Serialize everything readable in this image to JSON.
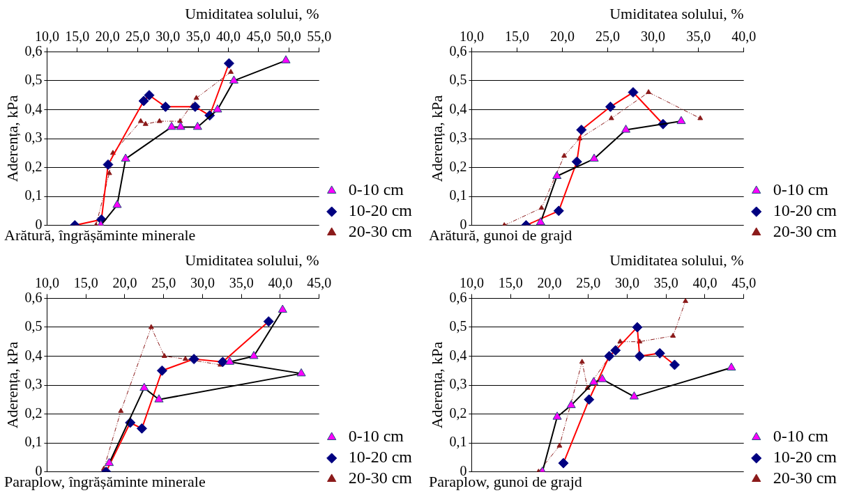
{
  "chart_data": [
    {
      "type": "line",
      "title": "Arătură, îngrășăminte minerale",
      "xlabel": "Umiditatea solului, %",
      "ylabel": "Aderența, kPa",
      "xlim": [
        10,
        55
      ],
      "xticks": [
        {
          "value": 10,
          "label": "10,0"
        },
        {
          "value": 15,
          "label": "15,0"
        },
        {
          "value": 20,
          "label": "20,0"
        },
        {
          "value": 25,
          "label": "25,0"
        },
        {
          "value": 30,
          "label": "30,0"
        },
        {
          "value": 35,
          "label": "35,0"
        },
        {
          "value": 40,
          "label": "40,0"
        },
        {
          "value": 45,
          "label": "45,0"
        },
        {
          "value": 50,
          "label": "50,0"
        },
        {
          "value": 55,
          "label": "55,0"
        }
      ],
      "ylim": [
        0,
        0.6
      ],
      "yticks": [
        {
          "value": 0,
          "label": "0"
        },
        {
          "value": 0.1,
          "label": "0,1"
        },
        {
          "value": 0.2,
          "label": "0,2"
        },
        {
          "value": 0.3,
          "label": "0,3"
        },
        {
          "value": 0.4,
          "label": "0,4"
        },
        {
          "value": 0.5,
          "label": "0,5"
        },
        {
          "value": 0.6,
          "label": "0,6"
        }
      ],
      "grid": "y",
      "legend": "bottom right",
      "series": [
        {
          "name": "0-10 cm",
          "color": "#000000",
          "marker": "triangle",
          "line_style": "solid",
          "x": [
            18.9,
            21.6,
            23.0,
            30.6,
            32.1,
            34.9,
            38.2,
            40.9,
            49.5
          ],
          "values": [
            0,
            0.07,
            0.23,
            0.34,
            0.34,
            0.34,
            0.4,
            0.5,
            0.57
          ]
        },
        {
          "name": "10-20 cm",
          "color": "#ff0000",
          "marker": "diamond",
          "line_style": "solid",
          "x": [
            14.6,
            19.0,
            20.1,
            26.0,
            26.9,
            29.6,
            34.5,
            36.9,
            40.1
          ],
          "values": [
            0,
            0.02,
            0.21,
            0.43,
            0.45,
            0.41,
            0.41,
            0.38,
            0.56
          ]
        },
        {
          "name": "20-30 cm",
          "color": "#8b1a1a",
          "marker": "triangle",
          "line_style": "dashed",
          "x": [
            18.1,
            20.3,
            20.9,
            25.5,
            26.3,
            28.6,
            32.0,
            34.7,
            40.4
          ],
          "values": [
            0,
            0.18,
            0.25,
            0.36,
            0.35,
            0.36,
            0.36,
            0.44,
            0.53
          ]
        }
      ]
    },
    {
      "type": "line",
      "title": "Arătură, gunoi de grajd",
      "xlabel": "Umiditatea solului, %",
      "ylabel": "Aderența, kPa",
      "xlim": [
        10,
        40
      ],
      "xticks": [
        {
          "value": 10,
          "label": "10,0"
        },
        {
          "value": 15,
          "label": "15,0"
        },
        {
          "value": 20,
          "label": "20,0"
        },
        {
          "value": 25,
          "label": "25,0"
        },
        {
          "value": 30,
          "label": "30,0"
        },
        {
          "value": 35,
          "label": "35,0"
        },
        {
          "value": 40,
          "label": "40,0"
        }
      ],
      "ylim": [
        0,
        0.6
      ],
      "yticks": [
        {
          "value": 0,
          "label": "0"
        },
        {
          "value": 0.1,
          "label": "0,1"
        },
        {
          "value": 0.2,
          "label": "0,2"
        },
        {
          "value": 0.3,
          "label": "0,3"
        },
        {
          "value": 0.4,
          "label": "0,4"
        },
        {
          "value": 0.5,
          "label": "0,5"
        },
        {
          "value": 0.6,
          "label": "0,6"
        }
      ],
      "grid": "y",
      "legend": "bottom right",
      "series": [
        {
          "name": "0-10 cm",
          "color": "#000000",
          "marker": "triangle",
          "line_style": "solid",
          "x": [
            17.6,
            19.4,
            23.5,
            27.0,
            33.1
          ],
          "values": [
            0.01,
            0.17,
            0.23,
            0.33,
            0.36
          ]
        },
        {
          "name": "10-20 cm",
          "color": "#ff0000",
          "marker": "diamond",
          "line_style": "solid",
          "x": [
            16.0,
            19.6,
            21.6,
            22.1,
            25.3,
            27.8,
            31.1
          ],
          "values": [
            0,
            0.05,
            0.22,
            0.33,
            0.41,
            0.46,
            0.35
          ]
        },
        {
          "name": "20-30 cm",
          "color": "#8b1a1a",
          "marker": "triangle",
          "line_style": "dashed",
          "x": [
            13.6,
            17.7,
            20.2,
            21.9,
            25.4,
            29.5,
            35.2
          ],
          "values": [
            0,
            0.06,
            0.24,
            0.3,
            0.37,
            0.46,
            0.37
          ]
        }
      ]
    },
    {
      "type": "line",
      "title": "Paraplow, îngrășăminte minerale",
      "xlabel": "Umiditatea solului, %",
      "ylabel": "Aderența, kPa",
      "xlim": [
        10,
        45
      ],
      "xticks": [
        {
          "value": 10,
          "label": "10,0"
        },
        {
          "value": 15,
          "label": "15,0"
        },
        {
          "value": 20,
          "label": "20,0"
        },
        {
          "value": 25,
          "label": "25,0"
        },
        {
          "value": 30,
          "label": "30,0"
        },
        {
          "value": 35,
          "label": "35,0"
        },
        {
          "value": 40,
          "label": "40,0"
        },
        {
          "value": 45,
          "label": "45,0"
        }
      ],
      "ylim": [
        0,
        0.6
      ],
      "yticks": [
        {
          "value": 0,
          "label": "0"
        },
        {
          "value": 0.1,
          "label": "0,1"
        },
        {
          "value": 0.2,
          "label": "0,2"
        },
        {
          "value": 0.3,
          "label": "0,3"
        },
        {
          "value": 0.4,
          "label": "0,4"
        },
        {
          "value": 0.5,
          "label": "0,5"
        },
        {
          "value": 0.6,
          "label": "0,6"
        }
      ],
      "grid": "y",
      "legend": "bottom right",
      "series": [
        {
          "name": "0-10 cm",
          "color": "#000000",
          "marker": "triangle",
          "line_style": "solid",
          "x": [
            18.0,
            22.5,
            24.4,
            42.7,
            33.5,
            36.6,
            40.3
          ],
          "values": [
            0.03,
            0.29,
            0.25,
            0.34,
            0.38,
            0.4,
            0.56
          ]
        },
        {
          "name": "10-20 cm",
          "color": "#ff0000",
          "marker": "diamond",
          "line_style": "solid",
          "x": [
            17.6,
            20.7,
            22.2,
            24.8,
            28.9,
            32.6,
            38.5
          ],
          "values": [
            0,
            0.17,
            0.15,
            0.35,
            0.39,
            0.38,
            0.52
          ]
        },
        {
          "name": "20-30 cm",
          "color": "#8b1a1a",
          "marker": "triangle",
          "line_style": "dashed",
          "x": [
            17.3,
            19.5,
            23.4,
            25.1,
            27.8,
            32.3
          ],
          "values": [
            0.01,
            0.21,
            0.5,
            0.4,
            0.39,
            0.37
          ]
        }
      ]
    },
    {
      "type": "line",
      "title": "Paraplow, gunoi de grajd",
      "xlabel": "Umiditatea solului, %",
      "ylabel": "Aderența, kPa",
      "xlim": [
        10,
        45
      ],
      "xticks": [
        {
          "value": 10,
          "label": "10,0"
        },
        {
          "value": 15,
          "label": "15,0"
        },
        {
          "value": 20,
          "label": "20,0"
        },
        {
          "value": 25,
          "label": "25,0"
        },
        {
          "value": 30,
          "label": "30,0"
        },
        {
          "value": 35,
          "label": "35,0"
        },
        {
          "value": 40,
          "label": "40,0"
        },
        {
          "value": 45,
          "label": "45,0"
        }
      ],
      "ylim": [
        0,
        0.6
      ],
      "yticks": [
        {
          "value": 0,
          "label": "0"
        },
        {
          "value": 0.1,
          "label": "0,1"
        },
        {
          "value": 0.2,
          "label": "0,2"
        },
        {
          "value": 0.3,
          "label": "0,3"
        },
        {
          "value": 0.4,
          "label": "0,4"
        },
        {
          "value": 0.5,
          "label": "0,5"
        },
        {
          "value": 0.6,
          "label": "0,6"
        }
      ],
      "grid": "y",
      "legend": "bottom right",
      "series": [
        {
          "name": "0-10 cm",
          "color": "#000000",
          "marker": "triangle",
          "line_style": "solid",
          "x": [
            19.1,
            21.0,
            22.8,
            25.7,
            26.8,
            30.9,
            43.4
          ],
          "values": [
            0,
            0.19,
            0.23,
            0.31,
            0.32,
            0.26,
            0.36
          ]
        },
        {
          "name": "10-20 cm",
          "color": "#ff0000",
          "marker": "diamond",
          "line_style": "solid",
          "x": [
            21.8,
            25.1,
            27.7,
            28.5,
            31.3,
            31.6,
            34.2,
            36.1
          ],
          "values": [
            0.03,
            0.25,
            0.4,
            0.42,
            0.5,
            0.4,
            0.41,
            0.37
          ]
        },
        {
          "name": "20-30 cm",
          "color": "#8b1a1a",
          "marker": "triangle",
          "line_style": "dashed",
          "x": [
            18.6,
            21.3,
            24.2,
            24.9,
            29.1,
            31.6,
            35.9,
            37.5
          ],
          "values": [
            0,
            0.09,
            0.38,
            0.29,
            0.45,
            0.45,
            0.47,
            0.59
          ]
        }
      ]
    }
  ]
}
